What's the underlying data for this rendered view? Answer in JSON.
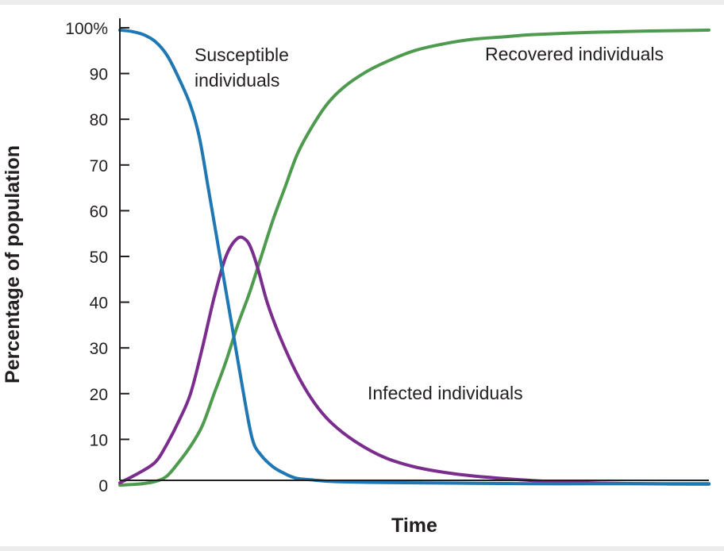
{
  "chart_data": {
    "type": "line",
    "title": "",
    "xlabel": "Time",
    "ylabel": "Percentage of population",
    "ylim": [
      0,
      100
    ],
    "xlim": [
      0,
      100
    ],
    "grid": false,
    "yticks": [
      0,
      10,
      20,
      30,
      40,
      50,
      60,
      70,
      80,
      90,
      100
    ],
    "ytick_labels": [
      "0",
      "10",
      "20",
      "30",
      "40",
      "50",
      "60",
      "70",
      "80",
      "90",
      "100%"
    ],
    "series": [
      {
        "name": "Susceptible individuals",
        "label_lines": [
          "Susceptible",
          "individuals"
        ],
        "color": "#1f77b4",
        "x": [
          0,
          2,
          4,
          6,
          8,
          10,
          12,
          13.5,
          15,
          17,
          19,
          21,
          22.5,
          24,
          26,
          28,
          30,
          33,
          36,
          42,
          50,
          60,
          70,
          80,
          90,
          100
        ],
        "y": [
          99.5,
          99.2,
          98.5,
          97,
          94,
          89,
          83,
          76,
          65,
          50,
          35,
          20,
          10,
          6.5,
          4,
          2.5,
          1.5,
          1.1,
          0.8,
          0.6,
          0.5,
          0.4,
          0.3,
          0.3,
          0.3,
          0.3
        ]
      },
      {
        "name": "Infected individuals",
        "label_lines": [
          "Infected individuals"
        ],
        "color": "#7b2d8e",
        "x": [
          0,
          3,
          6,
          8,
          10,
          12,
          14,
          16,
          18,
          20,
          21.5,
          22.5,
          23.5,
          25,
          27,
          30,
          33,
          36,
          40,
          45,
          50,
          55,
          60,
          70,
          80,
          90,
          100
        ],
        "y": [
          0.5,
          2.5,
          5,
          9,
          14,
          20,
          30,
          41,
          50,
          54,
          53.5,
          51,
          47,
          40,
          33,
          24.5,
          18,
          13.5,
          9.5,
          6,
          4,
          2.8,
          2,
          1,
          0.5,
          0.3,
          0.2
        ]
      },
      {
        "name": "Recovered individuals",
        "label_lines": [
          "Recovered individuals"
        ],
        "color": "#4e9a4e",
        "x": [
          0,
          3,
          6,
          8,
          10,
          12,
          14,
          16,
          18,
          20,
          22,
          24,
          26,
          28,
          30,
          32,
          35,
          38,
          42,
          46,
          50,
          55,
          60,
          65,
          70,
          80,
          90,
          100
        ],
        "y": [
          0,
          0.2,
          0.8,
          2,
          5,
          8.5,
          13,
          20,
          27,
          35,
          42,
          50,
          58,
          65,
          72,
          77,
          83,
          87,
          90.5,
          93,
          95,
          96.5,
          97.5,
          98,
          98.5,
          99,
          99.3,
          99.5
        ]
      }
    ]
  }
}
